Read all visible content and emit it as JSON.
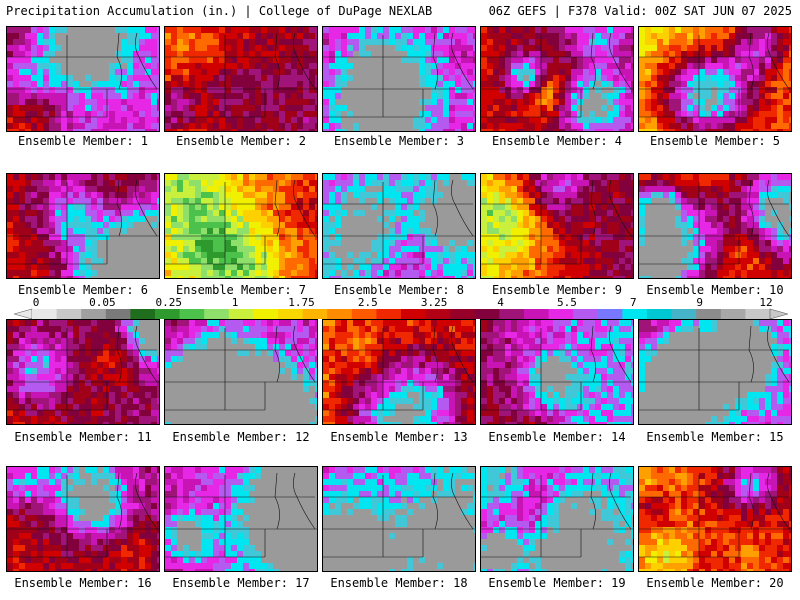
{
  "header": {
    "left": "Precipitation Accumulation (in.) | College of DuPage NEXLAB",
    "right": "06Z GEFS | F378 Valid: 00Z SAT JUN 07 2025"
  },
  "panels": [
    {
      "label": "Ensemble Member: 1",
      "intensity": 0.72
    },
    {
      "label": "Ensemble Member: 2",
      "intensity": 0.58
    },
    {
      "label": "Ensemble Member: 3",
      "intensity": 0.8
    },
    {
      "label": "Ensemble Member: 4",
      "intensity": 0.62
    },
    {
      "label": "Ensemble Member: 5",
      "intensity": 0.4
    },
    {
      "label": "Ensemble Member: 6",
      "intensity": 0.6
    },
    {
      "label": "Ensemble Member: 7",
      "intensity": 0.42
    },
    {
      "label": "Ensemble Member: 8",
      "intensity": 0.82
    },
    {
      "label": "Ensemble Member: 9",
      "intensity": 0.58
    },
    {
      "label": "Ensemble Member: 10",
      "intensity": 0.48
    },
    {
      "label": "Ensemble Member: 11",
      "intensity": 0.6
    },
    {
      "label": "Ensemble Member: 12",
      "intensity": 0.68
    },
    {
      "label": "Ensemble Member: 13",
      "intensity": 0.46
    },
    {
      "label": "Ensemble Member: 14",
      "intensity": 0.78
    },
    {
      "label": "Ensemble Member: 15",
      "intensity": 0.72
    },
    {
      "label": "Ensemble Member: 16",
      "intensity": 0.62
    },
    {
      "label": "Ensemble Member: 17",
      "intensity": 0.8
    },
    {
      "label": "Ensemble Member: 18",
      "intensity": 0.84
    },
    {
      "label": "Ensemble Member: 19",
      "intensity": 0.78
    },
    {
      "label": "Ensemble Member: 20",
      "intensity": 0.48
    }
  ],
  "colorscale": {
    "tick_labels": [
      "0",
      "0.05",
      "0.25",
      "1",
      "1.75",
      "2.5",
      "3.25",
      "4",
      "5.5",
      "7",
      "9",
      "12"
    ],
    "colors": [
      "#e8e8e8",
      "#c8c8c8",
      "#a0a0a0",
      "#7a7a7a",
      "#1e6e1e",
      "#2e9a2e",
      "#4cc24c",
      "#8ee06a",
      "#c8f03c",
      "#f0f000",
      "#f8d800",
      "#ffb400",
      "#ff8c00",
      "#ff5a00",
      "#f02800",
      "#d00000",
      "#b40014",
      "#960028",
      "#82003c",
      "#a0147a",
      "#c814b4",
      "#e628e6",
      "#b45af0",
      "#7878ff",
      "#00e6f0",
      "#00c8d2",
      "#46b4c8",
      "#8c8c8c",
      "#a8a8a8",
      "#c8c8c8"
    ]
  }
}
